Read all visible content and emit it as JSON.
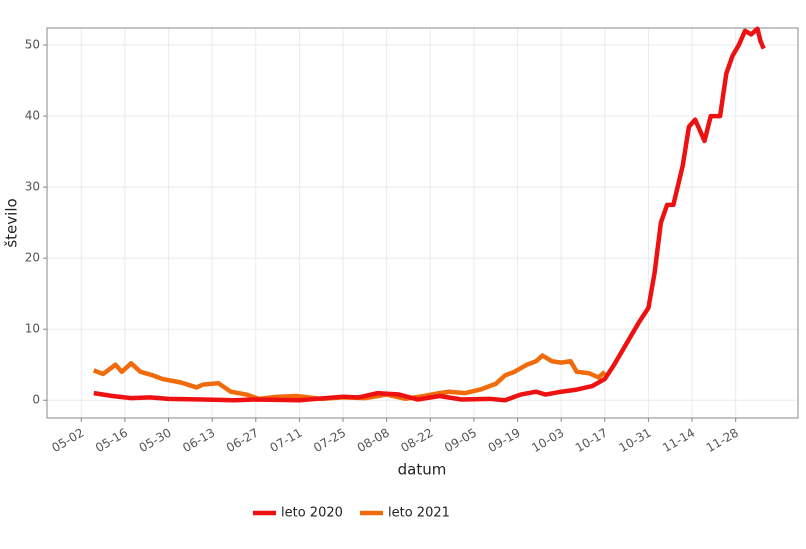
{
  "chart_data": {
    "type": "line",
    "xlabel": "datum",
    "ylabel": "število",
    "xlim": [
      "04-21",
      "12-18"
    ],
    "ylim": [
      -2.5,
      52.4
    ],
    "xticks": [
      "05-02",
      "05-16",
      "05-30",
      "06-13",
      "06-27",
      "07-11",
      "07-25",
      "08-08",
      "08-22",
      "09-05",
      "09-19",
      "10-03",
      "10-17",
      "10-31",
      "11-14",
      "11-28"
    ],
    "yticks": [
      0,
      10,
      20,
      30,
      40,
      50
    ],
    "grid": true,
    "legend": "bottom",
    "series": [
      {
        "name": "leto 2020",
        "color": "#ee1111",
        "x": [
          "05-06",
          "05-12",
          "05-18",
          "05-24",
          "05-30",
          "06-10",
          "06-20",
          "06-27",
          "07-11",
          "07-25",
          "07-30",
          "08-05",
          "08-12",
          "08-18",
          "08-25",
          "09-01",
          "09-10",
          "09-15",
          "09-20",
          "09-25",
          "09-28",
          "10-03",
          "10-08",
          "10-13",
          "10-17",
          "10-20",
          "10-24",
          "10-28",
          "10-31",
          "11-02",
          "11-04",
          "11-06",
          "11-08",
          "11-11",
          "11-13",
          "11-15",
          "11-18",
          "11-20",
          "11-23",
          "11-25",
          "11-27",
          "11-29",
          "12-01",
          "12-03",
          "12-05",
          "12-06",
          "12-07"
        ],
        "values": [
          1.0,
          0.6,
          0.3,
          0.4,
          0.2,
          0.1,
          0,
          0.1,
          0,
          0.5,
          0.4,
          1.0,
          0.8,
          0.1,
          0.6,
          0.1,
          0.2,
          0,
          0.8,
          1.2,
          0.8,
          1.2,
          1.5,
          2.0,
          3.0,
          5.0,
          8.0,
          11,
          13,
          18,
          25,
          27.5,
          27.5,
          33,
          38.5,
          39.5,
          36.5,
          40,
          40,
          46,
          48.5,
          50,
          52,
          51.5,
          52.3,
          50.5,
          49.5
        ]
      },
      {
        "name": "leto 2021",
        "color": "#f26b0a",
        "x": [
          "05-06",
          "05-09",
          "05-13",
          "05-15",
          "05-18",
          "05-21",
          "05-25",
          "05-28",
          "06-03",
          "06-08",
          "06-10",
          "06-15",
          "06-19",
          "06-24",
          "06-28",
          "07-04",
          "07-10",
          "07-18",
          "07-25",
          "08-01",
          "08-08",
          "08-14",
          "08-20",
          "08-25",
          "08-28",
          "09-02",
          "09-07",
          "09-12",
          "09-15",
          "09-18",
          "09-22",
          "09-25",
          "09-27",
          "09-30",
          "10-03",
          "10-06",
          "10-08",
          "10-12",
          "10-15",
          "10-17"
        ],
        "values": [
          4.2,
          3.7,
          5.0,
          4.0,
          5.2,
          4.0,
          3.5,
          3.0,
          2.5,
          1.8,
          2.2,
          2.4,
          1.2,
          0.8,
          0.2,
          0.5,
          0.6,
          0.2,
          0.4,
          0.3,
          0.8,
          0.2,
          0.6,
          1.0,
          1.2,
          1.0,
          1.5,
          2.3,
          3.5,
          4.0,
          5.0,
          5.5,
          6.3,
          5.5,
          5.3,
          5.5,
          4.0,
          3.8,
          3.2,
          4.0
        ]
      }
    ]
  }
}
